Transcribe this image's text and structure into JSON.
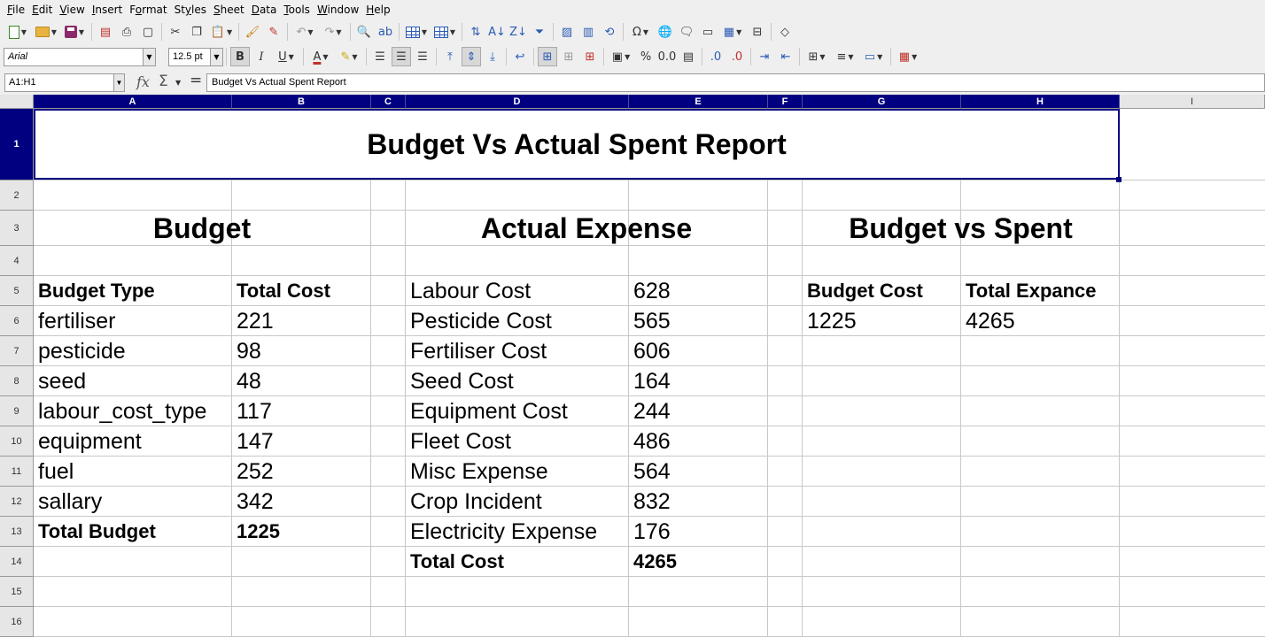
{
  "menubar": {
    "items": [
      {
        "key": "F",
        "rest": "ile"
      },
      {
        "key": "E",
        "rest": "dit"
      },
      {
        "key": "V",
        "rest": "iew"
      },
      {
        "key": "I",
        "rest": "nsert"
      },
      {
        "key": "",
        "pre": "F",
        "keyAfter": "o",
        "rest": "rmat"
      },
      {
        "key": "",
        "pre": "St",
        "keyAfter": "y",
        "rest": "les"
      },
      {
        "key": "S",
        "rest": "heet"
      },
      {
        "key": "D",
        "rest": "ata"
      },
      {
        "key": "T",
        "rest": "ools"
      },
      {
        "key": "W",
        "rest": "indow"
      },
      {
        "key": "H",
        "rest": "elp"
      }
    ]
  },
  "font": {
    "name": "Arial",
    "size": "12.5 pt"
  },
  "formula": {
    "namebox": "A1:H1",
    "content": "Budget Vs Actual Spent Report"
  },
  "columns": [
    "A",
    "B",
    "C",
    "D",
    "E",
    "F",
    "G",
    "H",
    "I"
  ],
  "rows": [
    "1",
    "2",
    "3",
    "4",
    "5",
    "6",
    "7",
    "8",
    "9",
    "10",
    "11",
    "12",
    "13",
    "14",
    "15",
    "16"
  ],
  "sheet": {
    "title": "Budget Vs Actual Spent Report",
    "budget": {
      "heading": "Budget",
      "col_type": "Budget Type",
      "col_cost": "Total Cost",
      "items": [
        {
          "type": "fertiliser",
          "cost": "221"
        },
        {
          "type": "pesticide",
          "cost": "98"
        },
        {
          "type": "seed",
          "cost": "48"
        },
        {
          "type": "labour_cost_type",
          "cost": "117"
        },
        {
          "type": "equipment",
          "cost": "147"
        },
        {
          "type": "fuel",
          "cost": "252"
        },
        {
          "type": "sallary",
          "cost": "342"
        }
      ],
      "total_label": "Total Budget",
      "total_value": "1225"
    },
    "actual": {
      "heading": "Actual Expense",
      "items": [
        {
          "name": "Labour Cost",
          "cost": "628"
        },
        {
          "name": "Pesticide Cost",
          "cost": "565"
        },
        {
          "name": "Fertiliser Cost",
          "cost": "606"
        },
        {
          "name": "Seed Cost",
          "cost": "164"
        },
        {
          "name": "Equipment Cost",
          "cost": "244"
        },
        {
          "name": "Fleet Cost",
          "cost": "486"
        },
        {
          "name": "Misc Expense",
          "cost": "564"
        },
        {
          "name": "Crop Incident",
          "cost": "832"
        },
        {
          "name": "Electricity Expense",
          "cost": "176"
        }
      ],
      "total_label": "Total Cost",
      "total_value": "4265"
    },
    "comparison": {
      "heading": "Budget vs Spent",
      "col_budget": "Budget Cost",
      "col_expense": "Total Expance",
      "budget_value": "1225",
      "expense_value": "4265"
    }
  },
  "colors": {
    "selection": "#000080",
    "gridline": "#c8c8c8"
  }
}
